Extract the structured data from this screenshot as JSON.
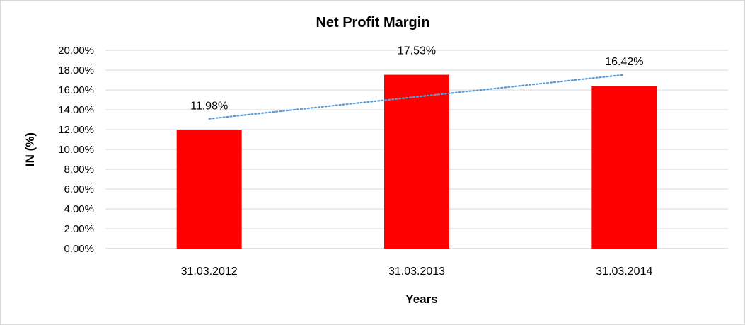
{
  "chart_data": {
    "type": "bar",
    "title": "Net Profit Margin",
    "xlabel": "Years",
    "ylabel": "IN (%)",
    "categories": [
      "31.03.2012",
      "31.03.2013",
      "31.03.2014"
    ],
    "values": [
      11.98,
      17.53,
      16.42
    ],
    "data_labels": [
      "11.98%",
      "17.53%",
      "16.42%"
    ],
    "y_ticks": [
      "0.00%",
      "2.00%",
      "4.00%",
      "6.00%",
      "8.00%",
      "10.00%",
      "12.00%",
      "14.00%",
      "16.00%",
      "18.00%",
      "20.00%"
    ],
    "ylim": [
      0,
      20
    ],
    "grid": true,
    "legend": "none",
    "trendline": {
      "type": "linear",
      "style": "dotted",
      "color": "#5b9bd5"
    },
    "bar_color": "#ff0000",
    "gridline_color": "#d9d9d9"
  }
}
